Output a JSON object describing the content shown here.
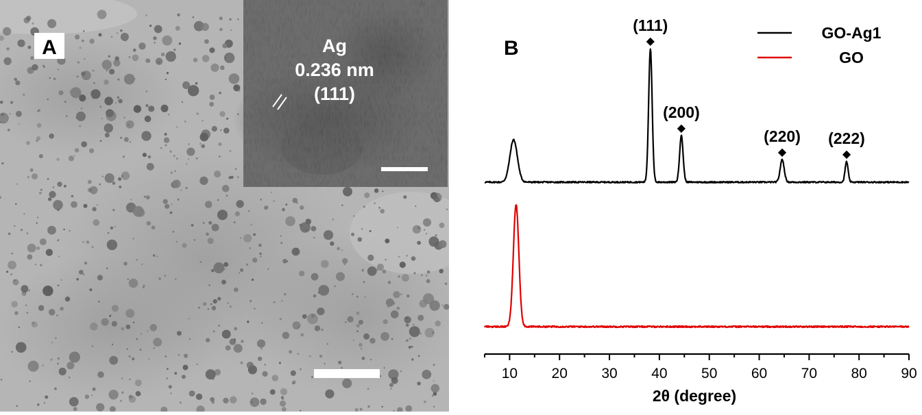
{
  "panel_a": {
    "label": "A",
    "inset": {
      "element": "Ag",
      "spacing": "0.236 nm",
      "plane": "(111)"
    }
  },
  "panel_b": {
    "label": "B"
  },
  "chart_data": {
    "type": "line",
    "xlabel": "2θ (degree)",
    "ylabel": "",
    "xlim": [
      5,
      90
    ],
    "xticks": [
      10,
      20,
      30,
      40,
      50,
      60,
      70,
      80,
      90
    ],
    "yaxis_visible": false,
    "grid": false,
    "legend_position": "top-right",
    "series": [
      {
        "name": "GO-Ag1",
        "color": "#000000",
        "baseline": 0.06,
        "peaks": [
          {
            "x": 10.8,
            "height": 0.62,
            "width": 0.75
          },
          {
            "x": 38.2,
            "height": 1.95,
            "width": 0.35
          },
          {
            "x": 44.4,
            "height": 0.68,
            "width": 0.35
          },
          {
            "x": 64.6,
            "height": 0.33,
            "width": 0.4
          },
          {
            "x": 77.5,
            "height": 0.3,
            "width": 0.3
          }
        ]
      },
      {
        "name": "GO",
        "color": "#e00000",
        "baseline": 0.03,
        "peaks": [
          {
            "x": 11.3,
            "height": 1.62,
            "width": 0.55
          }
        ]
      }
    ],
    "annotations": [
      {
        "text": "(111)",
        "x": 38.2,
        "series": "GO-Ag1"
      },
      {
        "text": "(200)",
        "x": 44.4,
        "series": "GO-Ag1"
      },
      {
        "text": "(220)",
        "x": 64.6,
        "series": "GO-Ag1"
      },
      {
        "text": "(222)",
        "x": 77.5,
        "series": "GO-Ag1"
      }
    ],
    "marker": "◆"
  }
}
